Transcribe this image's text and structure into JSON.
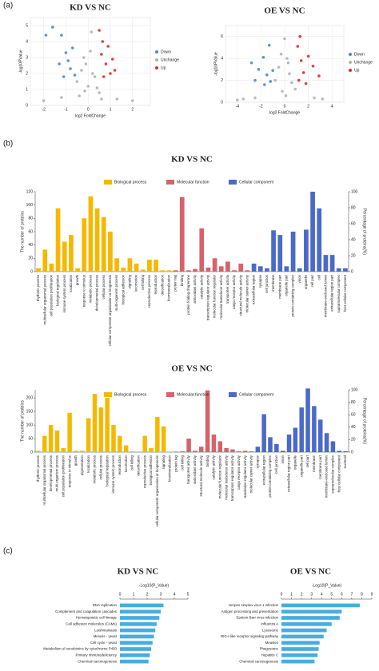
{
  "panel_labels": [
    "(a)",
    "(b)",
    "(c)"
  ],
  "chart_data": [
    {
      "type": "scatter",
      "title": "KD VS NC",
      "xlabel": "log2 FoldChange",
      "ylabel": "-log10PValue",
      "xlim": [
        -2.6,
        2.8
      ],
      "xticks": [
        -2,
        -1,
        0,
        1,
        2
      ],
      "ylim": [
        0,
        5.5
      ],
      "yticks": [
        0,
        1,
        2,
        3,
        4,
        5
      ],
      "grid": true,
      "legend": "right",
      "series": [
        {
          "name": "Down",
          "color": "#4f86d0",
          "x": [
            -1.9,
            -1.6,
            -1.2,
            -1.0,
            -0.9,
            -0.8,
            -0.7,
            -1.3,
            -0.6,
            -1.1
          ],
          "values": [
            4.4,
            4.9,
            4.4,
            3.3,
            2.8,
            2.3,
            3.6,
            2.6,
            1.9,
            1.8
          ]
        },
        {
          "name": "Unchange",
          "color": "#b3b3b3",
          "x": [
            -2.0,
            -1.2,
            -0.5,
            -0.3,
            -0.2,
            -0.1,
            0.0,
            0.1,
            0.2,
            0.3,
            0.4,
            0.5,
            1.3,
            2.0,
            -0.4,
            0.15,
            -0.15,
            0.6
          ],
          "values": [
            0.3,
            0.5,
            1.5,
            2.2,
            3.0,
            2.6,
            1.2,
            3.4,
            2.0,
            1.8,
            1.1,
            0.8,
            0.4,
            0.3,
            0.6,
            4.6,
            0.9,
            0.4
          ]
        },
        {
          "name": "Up",
          "color": "#e02b2b",
          "x": [
            0.5,
            0.6,
            0.8,
            0.9,
            1.0,
            1.1,
            0.7,
            1.2,
            0.65
          ],
          "values": [
            4.7,
            3.2,
            2.6,
            3.7,
            2.0,
            2.9,
            1.8,
            2.2,
            4.0
          ]
        }
      ]
    },
    {
      "type": "scatter",
      "title": "OE VS NC",
      "xlabel": "log2 FoldChange",
      "ylabel": "-log10PValue",
      "xlim": [
        -5,
        5
      ],
      "xticks": [
        -4,
        -2,
        0,
        2,
        4
      ],
      "ylim": [
        0,
        7
      ],
      "yticks": [
        0,
        2,
        4,
        6
      ],
      "grid": true,
      "legend": "right",
      "series": [
        {
          "name": "Down",
          "color": "#4f86d0",
          "x": [
            -2.8,
            -2.2,
            -1.8,
            -1.5,
            -1.2,
            -1.0,
            -1.7,
            -2.5,
            -1.3
          ],
          "values": [
            3.6,
            3.0,
            4.1,
            2.5,
            1.9,
            2.9,
            1.6,
            2.0,
            5.2
          ]
        },
        {
          "name": "Unchange",
          "color": "#b3b3b3",
          "x": [
            -3.5,
            -2.5,
            -0.8,
            -0.5,
            -0.3,
            0.0,
            0.2,
            0.4,
            0.6,
            0.9,
            2.5,
            -0.2,
            0.1,
            0.3,
            3.2,
            -4.0
          ],
          "values": [
            0.3,
            0.4,
            2.0,
            3.2,
            4.4,
            5.8,
            4.0,
            2.6,
            1.8,
            1.2,
            0.4,
            1.0,
            0.6,
            3.6,
            0.3,
            0.2
          ]
        },
        {
          "name": "Up",
          "color": "#e02b2b",
          "x": [
            1.1,
            1.4,
            1.6,
            2.0,
            2.4,
            1.2,
            1.8,
            2.9,
            1.3
          ],
          "values": [
            5.1,
            3.8,
            2.7,
            4.2,
            3.3,
            2.0,
            1.7,
            2.4,
            6.0
          ]
        }
      ]
    },
    {
      "type": "bar",
      "title": "KD VS NC",
      "ylabel": "The number of proteins",
      "y2label": "Percentage of proteins(%)",
      "ylim": [
        0,
        120
      ],
      "yticks": [
        0,
        20,
        40,
        60,
        80,
        100,
        120
      ],
      "y2lim": [
        0,
        100
      ],
      "y2ticks": [
        0,
        20,
        40,
        60,
        80,
        100
      ],
      "series": [
        {
          "name": "Biological process",
          "color": "#f5b800",
          "categories": [
            "rhythmic process",
            "multicellular organismal process",
            "cell population proliferation",
            "biological regulation",
            "immune system process",
            "localization",
            "growth",
            "response to stimulus",
            "metabolic process",
            "developmental process",
            "cellular process",
            "cellular component organization or biogenesis",
            "multi-organism process",
            "biological adhesion",
            "signaling",
            "locomotion",
            "cell killing",
            "reproductive process",
            "reproduction",
            "detoxification",
            "biomineralization"
          ],
          "values": [
            5,
            33,
            12,
            95,
            45,
            55,
            5,
            80,
            113,
            95,
            82,
            60,
            20,
            6,
            20,
            12,
            3,
            18,
            18,
            2,
            2
          ]
        },
        {
          "name": "Molecular function",
          "color": "#d6626b",
          "categories": [
            "protein tag",
            "binding",
            "protein folding chaperone",
            "antioxidant activity",
            "catalytic activity",
            "transcription regulator activity",
            "molecular function regulator",
            "molecular transducer activity",
            "transporter activity",
            "cargo receptor activity",
            "structural molecule activity",
            "molecular carrier activity"
          ],
          "values": [
            2,
            112,
            2,
            4,
            65,
            6,
            20,
            8,
            15,
            2,
            12,
            2
          ]
        },
        {
          "name": "Cellular component",
          "color": "#4a69c8",
          "categories": [
            "extracellular region",
            "synapse",
            "cell junction",
            "membrane",
            "membrane part",
            "organelle part",
            "protein-containing complex",
            "virion",
            "organelle",
            "cell part",
            "cell",
            "membrane-enclosed lumen",
            "extracellular region part",
            "supramolecular complex",
            "host cellular component"
          ],
          "values": [
            12,
            8,
            5,
            62,
            55,
            8,
            60,
            5,
            63,
            120,
            95,
            25,
            25,
            5,
            5
          ]
        }
      ]
    },
    {
      "type": "bar",
      "title": "OE VS NC",
      "ylabel": "The number of proteins",
      "y2label": "Percentage of proteins(%)",
      "ylim": [
        0,
        230
      ],
      "yticks": [
        0,
        50,
        100,
        150,
        200
      ],
      "y2lim": [
        0,
        100
      ],
      "y2ticks": [
        0,
        20,
        40,
        60,
        80,
        100
      ],
      "series": [
        {
          "name": "Biological process",
          "color": "#f5b800",
          "categories": [
            "rhythmic process",
            "multicellular organismal process",
            "developmental process",
            "multi-organism process",
            "cell population proliferation",
            "response to stimulus",
            "growth",
            "pigmentation",
            "localization",
            "metabolic process",
            "cellular process",
            "biological regulation",
            "immune system process",
            "reproduction",
            "locomotion",
            "cell killing",
            "detoxification",
            "reproductive process",
            "biological adhesion",
            "cellular component organization or biogenesis",
            "signaling",
            "biomineralization"
          ],
          "values": [
            5,
            60,
            100,
            80,
            15,
            145,
            5,
            5,
            125,
            215,
            165,
            200,
            100,
            60,
            25,
            3,
            2,
            60,
            15,
            130,
            95,
            2
          ]
        },
        {
          "name": "Molecular function",
          "color": "#d6626b",
          "categories": [
            "protein tag",
            "cell killing",
            "transporter activity",
            "antioxidant activity",
            "structural molecule activity",
            "binding",
            "catalytic activity",
            "molecular function regulator",
            "molecular transducer activity",
            "transcription regulator activity",
            "cargo receptor activity",
            "translation regulator activity",
            "molecular carrier activity"
          ],
          "values": [
            2,
            3,
            50,
            5,
            20,
            228,
            65,
            40,
            15,
            10,
            3,
            5,
            3
          ]
        },
        {
          "name": "Cellular component",
          "color": "#4a69c8",
          "categories": [
            "synapse",
            "extracellular region",
            "protein-containing complex",
            "cell junction",
            "virion",
            "extracellular region part",
            "organelle",
            "organelle part",
            "cell part",
            "membrane",
            "membrane part",
            "membrane-enclosed lumen",
            "supramolecular complex",
            "host cellular component",
            "nucleoid"
          ],
          "values": [
            20,
            140,
            55,
            30,
            5,
            65,
            90,
            165,
            235,
            170,
            120,
            70,
            40,
            5,
            3
          ]
        }
      ]
    },
    {
      "type": "barh",
      "title": "KD VS NC",
      "xlabel": "-Log10(P_Value)",
      "xlim": [
        0,
        5
      ],
      "xticks": [
        0,
        1,
        2,
        3,
        4,
        5
      ],
      "color": "#45ade0",
      "categories": [
        "DNA replication",
        "Complement and coagulation cascades",
        "Hematopoietic cell lineage",
        "Cell adhesion molecules (CAMs)",
        "Leishmaniasis",
        "Meiosis - yeast",
        "Cell cycle - yeast",
        "Metabolism of xenobiotics by cytochrome P450",
        "Primary immunodeficiency",
        "Chemical carcinogenesis"
      ],
      "values": [
        3.2,
        3.0,
        2.9,
        2.7,
        2.6,
        2.5,
        2.4,
        2.3,
        2.2,
        2.1
      ]
    },
    {
      "type": "barh",
      "title": "OE VS NC",
      "xlabel": "-Log10(P_Value)",
      "xlim": [
        0,
        9
      ],
      "xticks": [
        0,
        1,
        2,
        3,
        4,
        5,
        6,
        7,
        8,
        9
      ],
      "color": "#45ade0",
      "categories": [
        "Herpes simplex virus 1 infection",
        "Antigen processing and presentation",
        "Epstein-Barr virus infection",
        "Influenza A",
        "Lysosome",
        "RIG-I-like receptor signaling pathway",
        "Measles",
        "Phagosome",
        "Hepatitis C",
        "Chemical carcinogenesis"
      ],
      "values": [
        7.8,
        6.0,
        5.8,
        5.0,
        4.5,
        4.2,
        3.8,
        3.7,
        3.6,
        3.3
      ]
    }
  ]
}
